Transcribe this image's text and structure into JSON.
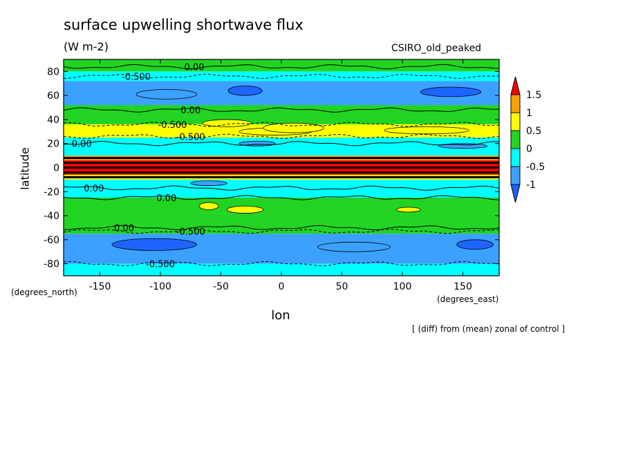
{
  "chart_data": {
    "type": "heatmap",
    "title": "surface upwelling shortwave flux",
    "units": "(W m-2)",
    "model_label": "CSIRO_old_peaked",
    "xlabel": "lon",
    "ylabel": "latitude",
    "x_unit_label": "(degrees_east)",
    "y_unit_label": "(degrees_north)",
    "footnote": "[ (diff) from (mean) zonal of control ]",
    "xlim": [
      -180,
      180
    ],
    "ylim": [
      -90,
      90
    ],
    "x_ticks": [
      -150,
      -100,
      -50,
      0,
      50,
      100,
      150
    ],
    "x_tick_labels": [
      "-150",
      "-100",
      "-50",
      "0",
      "50",
      "100",
      "150"
    ],
    "y_ticks": [
      80,
      60,
      40,
      20,
      0,
      -20,
      -40,
      -60,
      -80
    ],
    "y_tick_labels": [
      "80",
      "60",
      "40",
      "20",
      "0",
      "-20",
      "-40",
      "-60",
      "-80"
    ],
    "colorbar": {
      "levels": [
        -1,
        -0.5,
        0,
        0.5,
        1,
        1.5
      ],
      "level_labels": [
        "-1",
        "-0.5",
        "0",
        "0.5",
        "1",
        "1.5"
      ],
      "colors": [
        "#1e64ff",
        "#3ca0ff",
        "#00ffff",
        "#22d422",
        "#ffff00",
        "#ffa000",
        "#ff0000"
      ]
    },
    "zonal_bands": [
      {
        "lat_min": 80,
        "lat_max": 90,
        "value": 0.2
      },
      {
        "lat_min": 72,
        "lat_max": 80,
        "value": -0.3
      },
      {
        "lat_min": 52,
        "lat_max": 72,
        "value": -0.55
      },
      {
        "lat_min": 42,
        "lat_max": 52,
        "value": 0.2
      },
      {
        "lat_min": 36,
        "lat_max": 42,
        "value": 0.4
      },
      {
        "lat_min": 25,
        "lat_max": 36,
        "value": 0.6
      },
      {
        "lat_min": 10,
        "lat_max": 25,
        "value": -0.3
      },
      {
        "lat_min": 6,
        "lat_max": 10,
        "value": 1.2
      },
      {
        "lat_min": -6,
        "lat_max": 6,
        "value": 1.8
      },
      {
        "lat_min": -10,
        "lat_max": -6,
        "value": 0.8
      },
      {
        "lat_min": -25,
        "lat_max": -10,
        "value": -0.3
      },
      {
        "lat_min": -38,
        "lat_max": -25,
        "value": 0.2
      },
      {
        "lat_min": -48,
        "lat_max": -38,
        "value": 0.3
      },
      {
        "lat_min": -55,
        "lat_max": -48,
        "value": 0.1
      },
      {
        "lat_min": -80,
        "lat_max": -55,
        "value": -0.6
      },
      {
        "lat_min": -90,
        "lat_max": -80,
        "value": -0.3
      }
    ],
    "anomalies": [
      {
        "lon": -30,
        "lat": 64,
        "rx": 14,
        "ry": 4,
        "value": -1.1
      },
      {
        "lon": 140,
        "lat": 63,
        "rx": 25,
        "ry": 4,
        "value": -1.1
      },
      {
        "lon": -95,
        "lat": 61,
        "rx": 25,
        "ry": 4,
        "value": -0.8
      },
      {
        "lon": -5,
        "lat": 30,
        "rx": 30,
        "ry": 3,
        "value": 0.6
      },
      {
        "lon": -45,
        "lat": 37,
        "rx": 20,
        "ry": 3,
        "value": 0.7
      },
      {
        "lon": 10,
        "lat": 33,
        "rx": 25,
        "ry": 4,
        "value": 0.7
      },
      {
        "lon": 120,
        "lat": 31,
        "rx": 35,
        "ry": 3,
        "value": 0.6
      },
      {
        "lon": -20,
        "lat": 20,
        "rx": 15,
        "ry": 2,
        "value": -0.7
      },
      {
        "lon": 150,
        "lat": 18,
        "rx": 20,
        "ry": 2,
        "value": -0.7
      },
      {
        "lon": -60,
        "lat": -13,
        "rx": 15,
        "ry": 2,
        "value": -0.6
      },
      {
        "lon": -60,
        "lat": -32,
        "rx": 8,
        "ry": 3,
        "value": 0.7
      },
      {
        "lon": -30,
        "lat": -35,
        "rx": 15,
        "ry": 3,
        "value": 0.7
      },
      {
        "lon": 105,
        "lat": -35,
        "rx": 10,
        "ry": 2,
        "value": 0.6
      },
      {
        "lon": -105,
        "lat": -64,
        "rx": 35,
        "ry": 5,
        "value": -1.1
      },
      {
        "lon": 160,
        "lat": -64,
        "rx": 15,
        "ry": 4,
        "value": -1.1
      },
      {
        "lon": 60,
        "lat": -66,
        "rx": 30,
        "ry": 4,
        "value": -0.7
      }
    ],
    "contours": [
      {
        "lat": 84,
        "label": "0.00",
        "label_lon": -72
      },
      {
        "lat": 76,
        "label": "-0.500",
        "label_lon": -120
      },
      {
        "lat": 48,
        "label": "0.00",
        "label_lon": -75
      },
      {
        "lat": 36,
        "label": "-0.500",
        "label_lon": -90
      },
      {
        "lat": 26,
        "label": "-0.500",
        "label_lon": -75
      },
      {
        "lat": 20,
        "label": "0.00",
        "label_lon": -165
      },
      {
        "lat": -17,
        "label": "0.00",
        "label_lon": -155
      },
      {
        "lat": -25,
        "label": "0.00",
        "label_lon": -95
      },
      {
        "lat": -50,
        "label": "0.00",
        "label_lon": -130
      },
      {
        "lat": -53,
        "label": "-0.500",
        "label_lon": -75
      },
      {
        "lat": -80,
        "label": "-0.500",
        "label_lon": -100
      }
    ]
  }
}
